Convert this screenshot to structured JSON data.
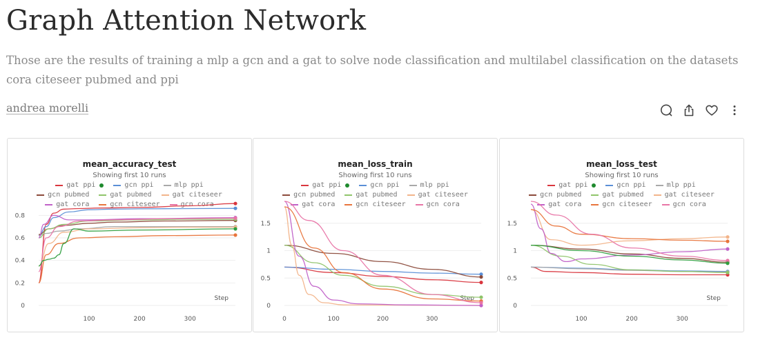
{
  "report": {
    "title": "Graph Attention Network",
    "description": "Those are the results of training a mlp a gcn and a gat to solve node classification and multilabel classification on the datasets cora citeseer pubmed and ppi",
    "author": "andrea morelli"
  },
  "actions": {
    "icons": [
      "comment-icon",
      "share-icon",
      "like-icon",
      "more-icon"
    ]
  },
  "legend": {
    "subtitle": "Showing first 10 runs",
    "items": [
      {
        "label": "gat ppi",
        "color": "#d9363e"
      },
      {
        "label": "gcn ppi",
        "color": "#5a8fd6"
      },
      {
        "label": "mlp ppi",
        "color": "#a8a8a8"
      },
      {
        "label": "gcn pubmed",
        "color": "#8b4a3a"
      },
      {
        "label": "gat pubmed",
        "color": "#8fc46a"
      },
      {
        "label": "gat citeseer",
        "color": "#f2b48a"
      },
      {
        "label": "gat cora",
        "color": "#c061c8"
      },
      {
        "label": "gcn citeseer",
        "color": "#e8743b"
      },
      {
        "label": "gcn cora",
        "color": "#e875a6"
      }
    ]
  },
  "chart_data": [
    {
      "type": "line",
      "title": "mean_accuracy_test",
      "xlabel": "Step",
      "ylabel": "",
      "xlim": [
        0,
        390
      ],
      "ylim": [
        0,
        0.9
      ],
      "xticks": [
        100,
        200,
        300
      ],
      "yticks": [
        0,
        0.2,
        0.4,
        0.6,
        0.8
      ],
      "series": [
        {
          "name": "gat ppi",
          "color": "#d9363e",
          "x": [
            0,
            15,
            30,
            50,
            80,
            120,
            200,
            300,
            390
          ],
          "y": [
            0.2,
            0.72,
            0.82,
            0.855,
            0.86,
            0.865,
            0.87,
            0.885,
            0.905
          ]
        },
        {
          "name": "gcn ppi",
          "color": "#5a8fd6",
          "x": [
            0,
            15,
            30,
            60,
            100,
            150,
            200,
            300,
            390
          ],
          "y": [
            0.62,
            0.7,
            0.78,
            0.83,
            0.85,
            0.855,
            0.858,
            0.86,
            0.862
          ]
        },
        {
          "name": "mlp ppi",
          "color": "#a8a8a8",
          "x": [
            0,
            15,
            40,
            80,
            150,
            250,
            390
          ],
          "y": [
            0.62,
            0.64,
            0.66,
            0.68,
            0.7,
            0.7,
            0.7
          ]
        },
        {
          "name": "gcn pubmed",
          "color": "#8b4a3a",
          "x": [
            0,
            20,
            50,
            100,
            150,
            250,
            390
          ],
          "y": [
            0.63,
            0.68,
            0.71,
            0.73,
            0.74,
            0.75,
            0.755
          ]
        },
        {
          "name": "gat pubmed",
          "color": "#8fc46a",
          "x": [
            0,
            20,
            50,
            100,
            200,
            300,
            390
          ],
          "y": [
            0.6,
            0.68,
            0.72,
            0.75,
            0.76,
            0.765,
            0.765
          ]
        },
        {
          "name": "gat citeseer",
          "color": "#f2b48a",
          "x": [
            0,
            20,
            50,
            100,
            200,
            300,
            390
          ],
          "y": [
            0.35,
            0.55,
            0.65,
            0.68,
            0.69,
            0.695,
            0.695
          ]
        },
        {
          "name": "gat cora",
          "color": "#c061c8",
          "x": [
            0,
            10,
            30,
            60,
            100,
            200,
            390
          ],
          "y": [
            0.6,
            0.72,
            0.8,
            0.76,
            0.76,
            0.77,
            0.78
          ]
        },
        {
          "name": "gcn citeseer",
          "color": "#e8743b",
          "x": [
            0,
            15,
            40,
            80,
            150,
            250,
            390
          ],
          "y": [
            0.2,
            0.45,
            0.55,
            0.6,
            0.61,
            0.62,
            0.625
          ]
        },
        {
          "name": "gcn cora",
          "color": "#e875a6",
          "x": [
            0,
            15,
            40,
            80,
            150,
            250,
            390
          ],
          "y": [
            0.3,
            0.6,
            0.7,
            0.75,
            0.76,
            0.77,
            0.775
          ]
        },
        {
          "name": "green run",
          "color": "#2e9e3e",
          "x": [
            0,
            10,
            20,
            30,
            40,
            50,
            70,
            100,
            200,
            390
          ],
          "y": [
            0.35,
            0.4,
            0.41,
            0.42,
            0.45,
            0.55,
            0.68,
            0.66,
            0.67,
            0.68
          ]
        }
      ]
    },
    {
      "type": "line",
      "title": "mean_loss_train",
      "xlabel": "Step",
      "ylabel": "",
      "xlim": [
        0,
        400
      ],
      "ylim": [
        0,
        1.85
      ],
      "xticks": [
        0,
        100,
        200,
        300
      ],
      "yticks": [
        0,
        0.5,
        1,
        1.5
      ],
      "series": [
        {
          "name": "gat ppi",
          "color": "#d9363e",
          "x": [
            0,
            100,
            200,
            300,
            400
          ],
          "y": [
            0.7,
            0.6,
            0.53,
            0.47,
            0.42
          ]
        },
        {
          "name": "gcn ppi",
          "color": "#5a8fd6",
          "x": [
            0,
            100,
            200,
            300,
            400
          ],
          "y": [
            0.7,
            0.66,
            0.62,
            0.59,
            0.57
          ]
        },
        {
          "name": "gcn pubmed",
          "color": "#8b4a3a",
          "x": [
            0,
            100,
            200,
            300,
            400
          ],
          "y": [
            1.1,
            0.95,
            0.8,
            0.66,
            0.52
          ]
        },
        {
          "name": "gat pubmed",
          "color": "#8fc46a",
          "x": [
            0,
            60,
            120,
            200,
            300,
            400
          ],
          "y": [
            1.1,
            0.78,
            0.55,
            0.35,
            0.2,
            0.15
          ]
        },
        {
          "name": "gat citeseer",
          "color": "#f2b48a",
          "x": [
            0,
            15,
            30,
            50,
            80,
            120,
            400
          ],
          "y": [
            1.8,
            1.1,
            0.55,
            0.2,
            0.05,
            0.01,
            0.0
          ]
        },
        {
          "name": "gat cora",
          "color": "#c061c8",
          "x": [
            0,
            30,
            60,
            100,
            150,
            250,
            400
          ],
          "y": [
            1.9,
            0.9,
            0.35,
            0.1,
            0.03,
            0.01,
            0.0
          ]
        },
        {
          "name": "gcn citeseer",
          "color": "#e8743b",
          "x": [
            0,
            60,
            120,
            200,
            300,
            400
          ],
          "y": [
            1.8,
            1.05,
            0.6,
            0.3,
            0.12,
            0.08
          ]
        },
        {
          "name": "gcn cora",
          "color": "#e875a6",
          "x": [
            0,
            50,
            120,
            200,
            300,
            400
          ],
          "y": [
            1.9,
            1.55,
            1.0,
            0.55,
            0.2,
            0.05
          ]
        }
      ]
    },
    {
      "type": "line",
      "title": "mean_loss_test",
      "xlabel": "Step",
      "ylabel": "",
      "xlim": [
        0,
        390
      ],
      "ylim": [
        0,
        1.85
      ],
      "xticks": [
        100,
        200,
        300
      ],
      "yticks": [
        0,
        0.5,
        1,
        1.5
      ],
      "series": [
        {
          "name": "gat ppi",
          "color": "#d9363e",
          "x": [
            0,
            30,
            100,
            200,
            300,
            390
          ],
          "y": [
            0.7,
            0.62,
            0.6,
            0.57,
            0.56,
            0.56
          ]
        },
        {
          "name": "gcn ppi",
          "color": "#5a8fd6",
          "x": [
            0,
            100,
            200,
            300,
            390
          ],
          "y": [
            0.7,
            0.68,
            0.65,
            0.63,
            0.62
          ]
        },
        {
          "name": "mlp ppi",
          "color": "#a8a8a8",
          "x": [
            0,
            100,
            200,
            300,
            390
          ],
          "y": [
            0.7,
            0.67,
            0.64,
            0.62,
            0.61
          ]
        },
        {
          "name": "gcn pubmed",
          "color": "#8b4a3a",
          "x": [
            0,
            100,
            200,
            300,
            390
          ],
          "y": [
            1.1,
            1.03,
            0.94,
            0.86,
            0.79
          ]
        },
        {
          "name": "gat pubmed",
          "color": "#8fc46a",
          "x": [
            0,
            60,
            120,
            200,
            300,
            390
          ],
          "y": [
            1.1,
            0.9,
            0.75,
            0.65,
            0.62,
            0.6
          ]
        },
        {
          "name": "gat citeseer",
          "color": "#f2b48a",
          "x": [
            0,
            40,
            100,
            200,
            300,
            390
          ],
          "y": [
            1.75,
            1.2,
            1.1,
            1.18,
            1.22,
            1.25
          ]
        },
        {
          "name": "gat cora",
          "color": "#c061c8",
          "x": [
            0,
            20,
            40,
            70,
            100,
            200,
            300,
            390
          ],
          "y": [
            1.85,
            1.4,
            0.95,
            0.8,
            0.85,
            0.92,
            0.98,
            1.03
          ]
        },
        {
          "name": "gcn citeseer",
          "color": "#e8743b",
          "x": [
            0,
            50,
            100,
            200,
            300,
            390
          ],
          "y": [
            1.75,
            1.45,
            1.3,
            1.22,
            1.19,
            1.17
          ]
        },
        {
          "name": "gcn cora",
          "color": "#e875a6",
          "x": [
            0,
            50,
            120,
            200,
            300,
            390
          ],
          "y": [
            1.9,
            1.65,
            1.3,
            1.05,
            0.9,
            0.82
          ]
        },
        {
          "name": "green run",
          "color": "#2e9e3e",
          "x": [
            0,
            100,
            200,
            300,
            390
          ],
          "y": [
            1.1,
            1.0,
            0.9,
            0.83,
            0.77
          ]
        }
      ]
    }
  ]
}
